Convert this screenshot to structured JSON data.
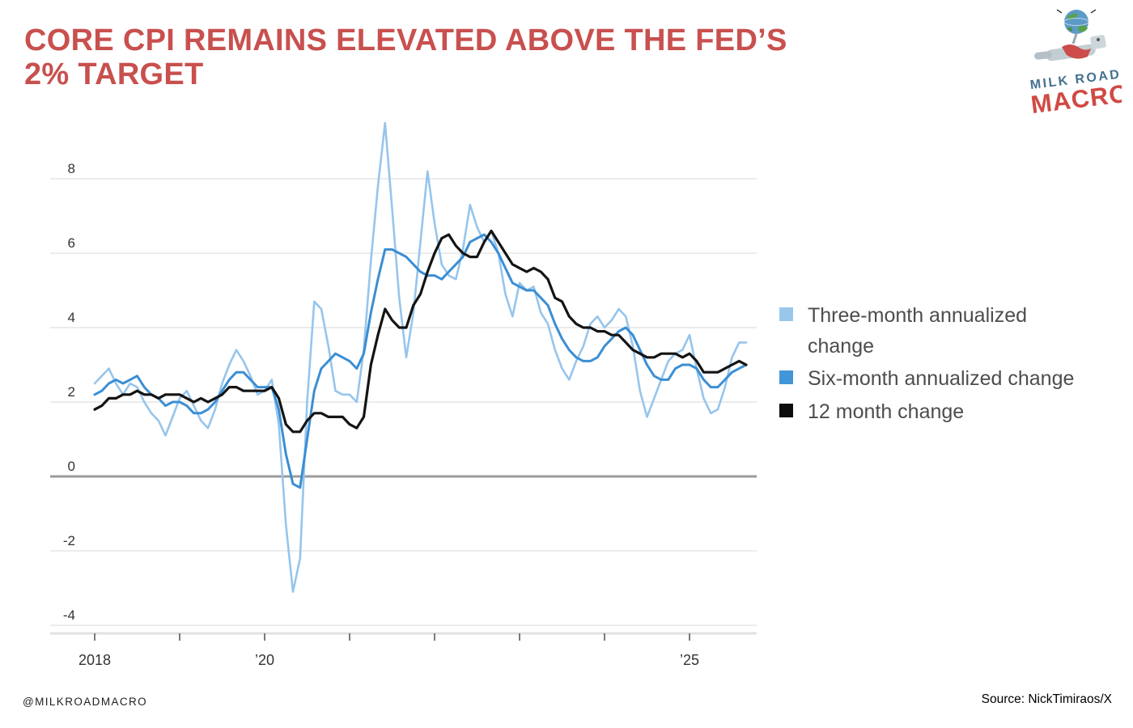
{
  "header": {
    "title_lines": [
      "CORE CPI REMAINS ELEVATED ABOVE THE FED’S",
      "2% TARGET"
    ],
    "title_color": "#c8504e"
  },
  "logo": {
    "line1": "MILK ROAD",
    "line2": "MACRO",
    "line1_color": "#44718e",
    "line2_color": "#d04a44"
  },
  "legend": {
    "items": [
      {
        "label": "Three-month annualized change",
        "color": "#99c7ec"
      },
      {
        "label": "Six-month annualized change",
        "color": "#4296d8"
      },
      {
        "label": "12 month change",
        "color": "#0d0d0d"
      }
    ]
  },
  "footer": {
    "handle": "@MILKROADMACRO",
    "source": "Source: NickTimiraos/X"
  },
  "chart_data": {
    "type": "line",
    "frequency": "monthly",
    "x_start": "2018-01",
    "x_end": "2025-09",
    "ylim": [
      -4.5,
      9.7
    ],
    "y_ticks": [
      8,
      6,
      4,
      2,
      0,
      -2,
      -4
    ],
    "x_axis_year_ticks": [
      2018,
      2019,
      2020,
      2021,
      2022,
      2023,
      2024,
      2025
    ],
    "x_tick_labels": [
      {
        "year": 2018,
        "label": "2018"
      },
      {
        "year": 2020,
        "label": "’20"
      },
      {
        "year": 2025,
        "label": "’25"
      }
    ],
    "grid": true,
    "zero_line": true,
    "legend_position": "right",
    "series": [
      {
        "name": "Three-month annualized change",
        "color": "#96c5ec",
        "width": 2.6,
        "values": [
          2.5,
          2.7,
          2.9,
          2.5,
          2.2,
          2.5,
          2.4,
          2.0,
          1.7,
          1.5,
          1.1,
          1.6,
          2.1,
          2.3,
          1.9,
          1.5,
          1.3,
          1.8,
          2.5,
          3.0,
          3.4,
          3.1,
          2.7,
          2.2,
          2.3,
          2.6,
          1.4,
          -1.3,
          -3.1,
          -2.2,
          2.0,
          4.7,
          4.5,
          3.5,
          2.3,
          2.2,
          2.2,
          2.0,
          3.4,
          5.8,
          7.8,
          9.5,
          7.2,
          4.8,
          3.2,
          4.4,
          6.3,
          8.2,
          6.8,
          5.7,
          5.4,
          5.3,
          6.1,
          7.3,
          6.7,
          6.3,
          6.6,
          6.0,
          4.9,
          4.3,
          5.2,
          5.0,
          5.1,
          4.4,
          4.1,
          3.4,
          2.9,
          2.6,
          3.1,
          3.5,
          4.1,
          4.3,
          4.0,
          4.2,
          4.5,
          4.3,
          3.5,
          2.3,
          1.6,
          2.1,
          2.6,
          3.1,
          3.3,
          3.4,
          3.8,
          2.9,
          2.1,
          1.7,
          1.8,
          2.4,
          3.2,
          3.6,
          3.6
        ]
      },
      {
        "name": "Six-month annualized change",
        "color": "#3b8ed3",
        "width": 3,
        "values": [
          2.2,
          2.3,
          2.5,
          2.6,
          2.5,
          2.6,
          2.7,
          2.4,
          2.2,
          2.1,
          1.9,
          2.0,
          2.0,
          1.9,
          1.7,
          1.7,
          1.8,
          2.0,
          2.3,
          2.6,
          2.8,
          2.8,
          2.6,
          2.4,
          2.4,
          2.4,
          1.8,
          0.6,
          -0.2,
          -0.3,
          1.0,
          2.3,
          2.9,
          3.1,
          3.3,
          3.2,
          3.1,
          2.9,
          3.3,
          4.4,
          5.3,
          6.1,
          6.1,
          6.0,
          5.9,
          5.7,
          5.5,
          5.4,
          5.4,
          5.3,
          5.5,
          5.7,
          5.9,
          6.3,
          6.4,
          6.5,
          6.3,
          6.0,
          5.6,
          5.2,
          5.1,
          5.0,
          5.0,
          4.8,
          4.6,
          4.1,
          3.7,
          3.4,
          3.2,
          3.1,
          3.1,
          3.2,
          3.5,
          3.7,
          3.9,
          4.0,
          3.8,
          3.4,
          3.0,
          2.7,
          2.6,
          2.6,
          2.9,
          3.0,
          3.0,
          2.9,
          2.6,
          2.4,
          2.4,
          2.6,
          2.8,
          2.9,
          3.0
        ]
      },
      {
        "name": "12 month change",
        "color": "#141414",
        "width": 3.2,
        "values": [
          1.8,
          1.9,
          2.1,
          2.1,
          2.2,
          2.2,
          2.3,
          2.2,
          2.2,
          2.1,
          2.2,
          2.2,
          2.2,
          2.1,
          2.0,
          2.1,
          2.0,
          2.1,
          2.2,
          2.4,
          2.4,
          2.3,
          2.3,
          2.3,
          2.3,
          2.4,
          2.1,
          1.4,
          1.2,
          1.2,
          1.5,
          1.7,
          1.7,
          1.6,
          1.6,
          1.6,
          1.4,
          1.3,
          1.6,
          3.0,
          3.8,
          4.5,
          4.2,
          4.0,
          4.0,
          4.6,
          4.9,
          5.5,
          6.0,
          6.4,
          6.5,
          6.2,
          6.0,
          5.9,
          5.9,
          6.3,
          6.6,
          6.3,
          6.0,
          5.7,
          5.6,
          5.5,
          5.6,
          5.5,
          5.3,
          4.8,
          4.7,
          4.3,
          4.1,
          4.0,
          4.0,
          3.9,
          3.9,
          3.8,
          3.8,
          3.6,
          3.4,
          3.3,
          3.2,
          3.2,
          3.3,
          3.3,
          3.3,
          3.2,
          3.3,
          3.1,
          2.8,
          2.8,
          2.8,
          2.9,
          3.0,
          3.1,
          3.0
        ]
      }
    ]
  }
}
